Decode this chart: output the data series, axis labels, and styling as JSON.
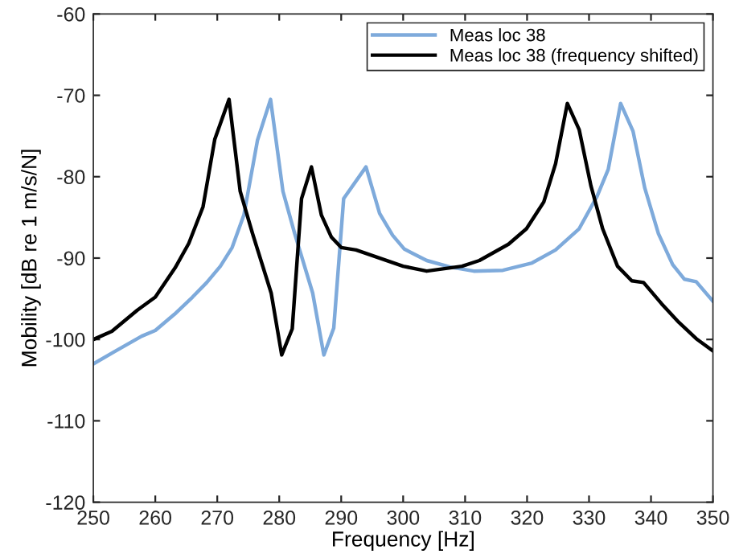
{
  "chart_data": {
    "type": "line",
    "xlabel": "Frequency [Hz]",
    "ylabel": "Mobility [dB re 1 m/s/N]",
    "xlim": [
      250,
      350
    ],
    "ylim": [
      -120,
      -60
    ],
    "xticks": [
      250,
      260,
      270,
      280,
      290,
      300,
      310,
      320,
      330,
      340,
      350
    ],
    "yticks": [
      -120,
      -110,
      -100,
      -90,
      -80,
      -70,
      -60
    ],
    "grid": false,
    "legend": "top right",
    "marker": "none",
    "line_style": "solid",
    "series": [
      {
        "name": "Meas loc 38",
        "color": "#7eaadb",
        "x": [
          250,
          253.4,
          257.8,
          260,
          263.1,
          266,
          268.3,
          270.5,
          272.4,
          274.3,
          276.5,
          278.6,
          280.6,
          282.5,
          285.4,
          287.2,
          288.8,
          290.4,
          294,
          296.2,
          298.3,
          300.2,
          303.8,
          307.6,
          311.4,
          316.1,
          320.8,
          324.6,
          328.4,
          331.3,
          333.1,
          335.1,
          337.1,
          339,
          341.2,
          343.5,
          345.4,
          347.3,
          350
        ],
        "values": [
          -103,
          -101.5,
          -99.6,
          -98.9,
          -96.9,
          -94.8,
          -93,
          -91,
          -88.7,
          -84.7,
          -75.5,
          -70.5,
          -81.8,
          -87,
          -94.3,
          -101.9,
          -98.6,
          -82.7,
          -78.8,
          -84.5,
          -87.2,
          -88.9,
          -90.3,
          -91.1,
          -91.6,
          -91.5,
          -90.6,
          -89,
          -86.4,
          -82.4,
          -79.1,
          -71,
          -74.4,
          -81.4,
          -87,
          -90.8,
          -92.6,
          -92.9,
          -95.3
        ]
      },
      {
        "name": "Meas loc 38 (frequency shifted)",
        "color": "#000000",
        "x": [
          250,
          253,
          257.1,
          260,
          263.2,
          265.4,
          267.7,
          269.6,
          271.9,
          273.7,
          275.7,
          278.7,
          280.4,
          282.1,
          283.6,
          285.2,
          286.8,
          288.4,
          290,
          292.4,
          300,
          303.8,
          309.5,
          312.3,
          317,
          319.9,
          322.7,
          324.6,
          326.5,
          328.4,
          330.3,
          332.2,
          334.6,
          336.9,
          338.8,
          341.7,
          344.5,
          347.3,
          350
        ],
        "values": [
          -100,
          -99,
          -96.4,
          -94.8,
          -91.2,
          -88.2,
          -83.7,
          -75.4,
          -70.5,
          -81.8,
          -87,
          -94.3,
          -101.9,
          -98.7,
          -82.7,
          -78.8,
          -84.7,
          -87.4,
          -88.7,
          -89,
          -91,
          -91.6,
          -91,
          -90.3,
          -88.3,
          -86.4,
          -83.1,
          -78.4,
          -71,
          -74.2,
          -81.1,
          -86.4,
          -91,
          -92.8,
          -93,
          -95.6,
          -97.9,
          -99.9,
          -101.4
        ]
      }
    ]
  }
}
